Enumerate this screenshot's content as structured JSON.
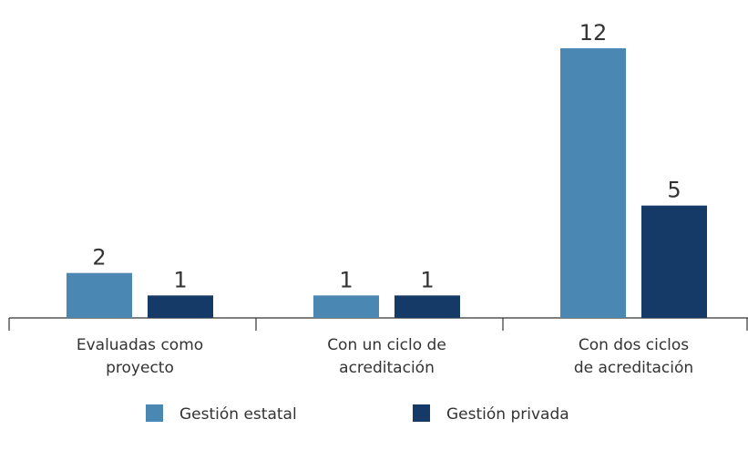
{
  "chart_data": {
    "type": "bar",
    "categories": [
      "Evaluadas como\nproyecto",
      "Con un ciclo de\nacreditación",
      "Con dos ciclos\nde acreditación"
    ],
    "series": [
      {
        "name": "Gestión estatal",
        "color": "#4a87b2",
        "values": [
          2,
          1,
          12
        ]
      },
      {
        "name": "Gestión privada",
        "color": "#163a67",
        "values": [
          1,
          1,
          5
        ]
      }
    ]
  }
}
